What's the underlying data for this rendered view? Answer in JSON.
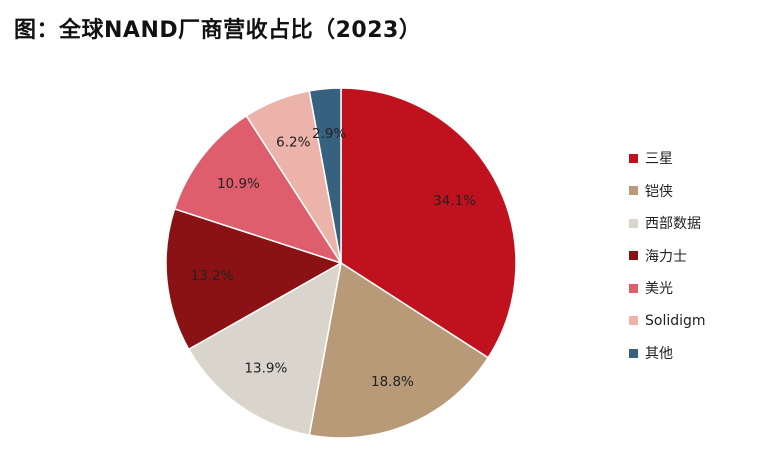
{
  "title": "图：全球NAND厂商营收占比（2023）",
  "chart_data": {
    "type": "pie",
    "title": "图：全球NAND厂商营收占比（2023）",
    "legend_position": "right",
    "start_angle_deg": 0,
    "direction": "clockwise",
    "slices": [
      {
        "name": "三星",
        "value": 34.1,
        "label": "34.1%",
        "color": "#C0121E"
      },
      {
        "name": "铠侠",
        "value": 18.8,
        "label": "18.8%",
        "color": "#B89A78"
      },
      {
        "name": "西部数据",
        "value": 13.9,
        "label": "13.9%",
        "color": "#DAD5CC"
      },
      {
        "name": "海力士",
        "value": 13.2,
        "label": "13.2%",
        "color": "#8B1214"
      },
      {
        "name": "美光",
        "value": 10.9,
        "label": "10.9%",
        "color": "#DE5E6E"
      },
      {
        "name": "Solidigm",
        "value": 6.2,
        "label": "6.2%",
        "color": "#ECB3AA"
      },
      {
        "name": "其他",
        "value": 2.9,
        "label": "2.9%",
        "color": "#36617F"
      }
    ]
  }
}
